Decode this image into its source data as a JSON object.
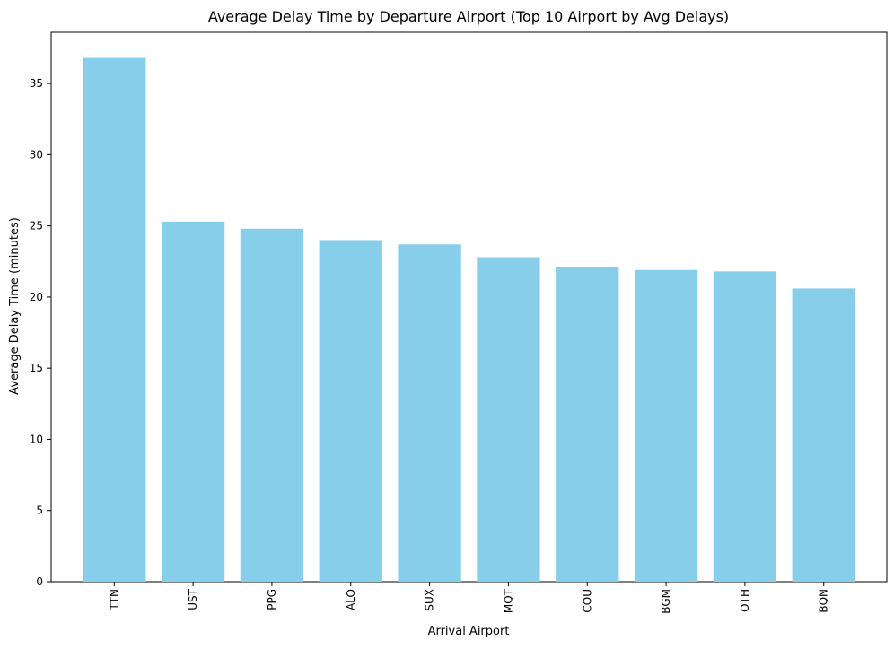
{
  "chart_data": {
    "type": "bar",
    "title": "Average Delay Time by Departure Airport (Top 10 Airport by Avg Delays)",
    "xlabel": "Arrival Airport",
    "ylabel": "Average Delay Time (minutes)",
    "categories": [
      "TTN",
      "UST",
      "PPG",
      "ALO",
      "SUX",
      "MQT",
      "COU",
      "BGM",
      "OTH",
      "BQN"
    ],
    "values": [
      36.8,
      25.3,
      24.8,
      24.0,
      23.7,
      22.8,
      22.1,
      21.9,
      21.8,
      20.6
    ],
    "ylim": [
      0,
      38.6
    ],
    "yticks": [
      0,
      5,
      10,
      15,
      20,
      25,
      30,
      35
    ],
    "bar_color": "#87CEEB",
    "grid": false,
    "legend": "none"
  }
}
